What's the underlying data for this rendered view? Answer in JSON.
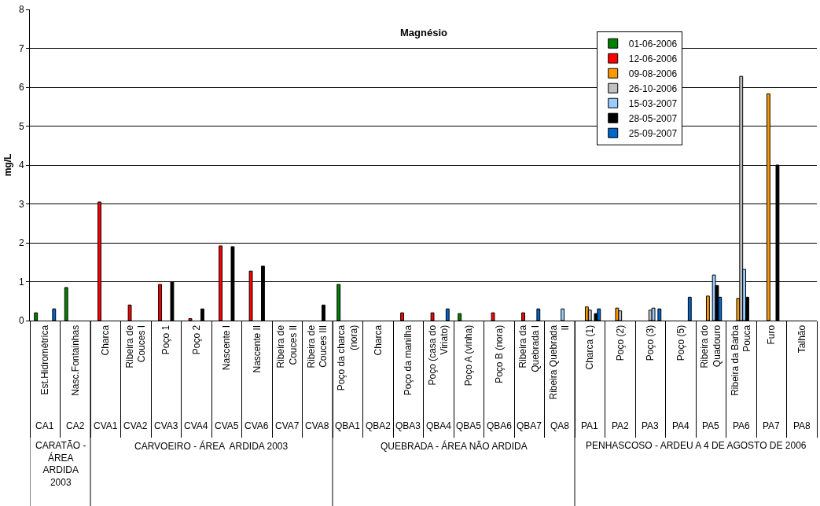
{
  "chart_data": {
    "type": "bar",
    "title": "Magnésio",
    "ylabel": "mg/L",
    "categories": [
      "Est.Hidrométrica",
      "Nasc.Fontainhas",
      "Charca",
      "Ribeira de Couces I",
      "Poço 1",
      "Poço 2",
      "Nascente I",
      "Nascente II",
      "Ribeira de Couces II",
      "Ribeira de Couces III",
      "Poço da charca (nora)",
      "Charca",
      "Poço da manilha",
      "Poço (casa do Viriato)",
      "Poço A (vinha)",
      "Poço B (nora)",
      "Ribeira da Quebrada I",
      "Ribeira Quebrada II",
      "Charca (1)",
      "Poço (2)",
      "Poço (3)",
      "Poço (5)",
      "Ribeira do Quadouro",
      "Ribeira da Barba Pouca",
      "Furo",
      "Talhão"
    ],
    "series": [
      {
        "name": "01-06-2006",
        "color": "#008000",
        "values": [
          0.2,
          0.85,
          null,
          null,
          null,
          null,
          null,
          null,
          null,
          null,
          0.93,
          null,
          null,
          null,
          0.18,
          null,
          null,
          null,
          null,
          null,
          null,
          null,
          null,
          null,
          null,
          null
        ]
      },
      {
        "name": "12-06-2006",
        "color": "#ff0000",
        "values": [
          null,
          null,
          3.05,
          0.4,
          0.93,
          0.05,
          1.92,
          1.27,
          null,
          null,
          null,
          null,
          0.2,
          0.2,
          null,
          0.2,
          0.2,
          null,
          null,
          null,
          null,
          null,
          null,
          null,
          null,
          null
        ]
      },
      {
        "name": "09-08-2006",
        "color": "#ff9900",
        "values": [
          null,
          null,
          null,
          null,
          null,
          null,
          null,
          null,
          null,
          null,
          null,
          null,
          null,
          null,
          null,
          null,
          null,
          null,
          0.35,
          0.32,
          null,
          null,
          0.63,
          0.57,
          5.83,
          null
        ]
      },
      {
        "name": "26-10-2006",
        "color": "#c0c0c0",
        "values": [
          null,
          null,
          null,
          null,
          null,
          null,
          null,
          null,
          null,
          null,
          null,
          null,
          null,
          null,
          null,
          null,
          null,
          null,
          0.27,
          0.25,
          0.27,
          null,
          null,
          6.28,
          null,
          null
        ]
      },
      {
        "name": "15-03-2007",
        "color": "#99ccff",
        "values": [
          null,
          null,
          null,
          null,
          null,
          null,
          null,
          null,
          null,
          null,
          null,
          null,
          null,
          null,
          null,
          null,
          null,
          0.3,
          null,
          null,
          0.32,
          null,
          1.17,
          1.32,
          null,
          null
        ]
      },
      {
        "name": "28-05-2007",
        "color": "#000000",
        "values": [
          null,
          null,
          null,
          null,
          1.0,
          0.3,
          1.9,
          1.4,
          null,
          0.4,
          null,
          null,
          null,
          null,
          null,
          null,
          null,
          null,
          0.18,
          null,
          null,
          null,
          0.9,
          0.6,
          4.0,
          null
        ]
      },
      {
        "name": "25-09-2007",
        "color": "#0066cc",
        "values": [
          0.3,
          null,
          null,
          null,
          null,
          null,
          null,
          null,
          null,
          null,
          null,
          null,
          null,
          0.3,
          null,
          null,
          0.3,
          null,
          0.3,
          null,
          0.3,
          0.6,
          0.6,
          null,
          null,
          null
        ]
      }
    ],
    "annotations": [
      "CA1",
      "CA2",
      "CVA1",
      "CVA2",
      "CVA3",
      "CVA4",
      "CVA5",
      "CVA6",
      "CVA7",
      "CVA8",
      "QBA1",
      "QBA2",
      "QBA3",
      "QBA4",
      "QBA5",
      "QBA6",
      "QBA7",
      "QA8",
      "PA1",
      "PA2",
      "PA3",
      "PA4",
      "PA5",
      "PA6",
      "PA7",
      "PA8",
      "CARATÃO - ÁREA ARDIDA 2003",
      "CARVOEIRO - ÁREA  ARDIDA 2003",
      "QUEBRADA - ÁREA NÃO ARDIDA",
      "PENHASCOSO - ARDEU A 4 DE AGOSTO DE 2006"
    ],
    "ylim": [
      0,
      8
    ],
    "yticks": [
      0,
      1,
      2,
      3,
      4,
      5,
      6,
      7,
      8
    ],
    "grid": "y",
    "legend": "top right"
  }
}
